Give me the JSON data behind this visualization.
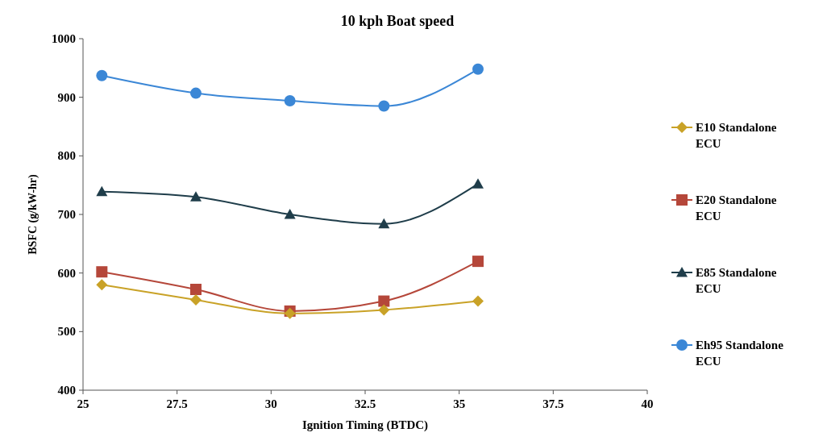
{
  "chart_data": {
    "type": "line",
    "title": "10 kph Boat speed",
    "xlabel": "Ignition Timing (BTDC)",
    "ylabel": "BSFC (g/kW-hr)",
    "x": [
      25.5,
      28,
      30.5,
      33,
      35.5
    ],
    "xlim": [
      25,
      40
    ],
    "xticks": [
      25,
      27.5,
      30,
      32.5,
      35,
      37.5,
      40
    ],
    "ylim": [
      400,
      1000
    ],
    "yticks": [
      400,
      500,
      600,
      700,
      800,
      900,
      1000
    ],
    "grid": false,
    "legend": "right",
    "line_style": "solid",
    "series": [
      {
        "name": "E10 Standalone ECU",
        "color": "#c9a227",
        "marker": "diamond",
        "values": [
          580,
          554,
          531,
          537,
          552
        ]
      },
      {
        "name": "E20 Standalone ECU",
        "color": "#b5473a",
        "marker": "square",
        "values": [
          602,
          572,
          535,
          552,
          620
        ]
      },
      {
        "name": "E85 Standalone ECU",
        "color": "#1f3d4a",
        "marker": "triangle",
        "values": [
          739,
          730,
          700,
          684,
          752
        ]
      },
      {
        "name": "Eh95 Standalone ECU",
        "color": "#3b87d6",
        "marker": "circle",
        "values": [
          937,
          907,
          894,
          885,
          948
        ]
      }
    ]
  }
}
